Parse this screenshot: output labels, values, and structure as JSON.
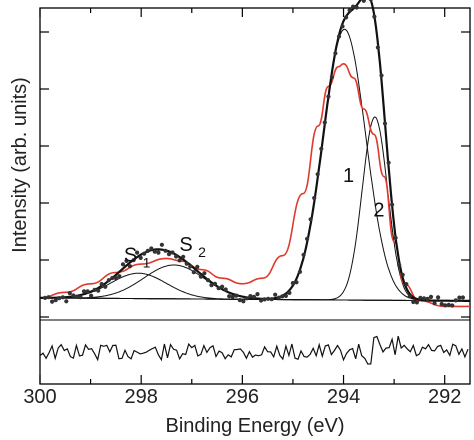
{
  "chart_data": {
    "type": "line",
    "xlabel": "Binding Energy (eV)",
    "ylabel": "Intensity (arb. units)",
    "x_reversed": true,
    "xlim": [
      300,
      291.5
    ],
    "ylim": [
      0,
      1.0
    ],
    "y_ticks_labeled": false,
    "x_ticks": [
      {
        "value": 300,
        "label": "300"
      },
      {
        "value": 298,
        "label": "298"
      },
      {
        "value": 296,
        "label": "296"
      },
      {
        "value": 294,
        "label": "294"
      },
      {
        "value": 292,
        "label": "292"
      }
    ],
    "components": [
      {
        "label": "S",
        "sub": "1",
        "center": 298.05,
        "width": 0.55,
        "height": 0.09
      },
      {
        "label": "S",
        "sub": "2",
        "center": 297.35,
        "width": 0.6,
        "height": 0.12
      },
      {
        "label": "1",
        "center": 293.98,
        "width": 0.42,
        "height": 0.96
      },
      {
        "label": "2",
        "center": 293.38,
        "width": 0.25,
        "height": 0.65
      }
    ],
    "comparison_curve": {
      "color": "#e03a2e",
      "points": [
        [
          300,
          0.05
        ],
        [
          299.5,
          0.07
        ],
        [
          299,
          0.1
        ],
        [
          298.5,
          0.14
        ],
        [
          298,
          0.17
        ],
        [
          297.5,
          0.19
        ],
        [
          297.2,
          0.18
        ],
        [
          296.8,
          0.15
        ],
        [
          296.4,
          0.12
        ],
        [
          296,
          0.1
        ],
        [
          295.6,
          0.12
        ],
        [
          295.2,
          0.2
        ],
        [
          294.8,
          0.42
        ],
        [
          294.5,
          0.66
        ],
        [
          294.3,
          0.8
        ],
        [
          294.1,
          0.87
        ],
        [
          294,
          0.88
        ],
        [
          293.8,
          0.83
        ],
        [
          293.6,
          0.72
        ],
        [
          293.4,
          0.63
        ],
        [
          293.2,
          0.48
        ],
        [
          293,
          0.25
        ],
        [
          292.8,
          0.1
        ],
        [
          292.5,
          0.04
        ],
        [
          292,
          0.02
        ],
        [
          291.5,
          0.02
        ]
      ]
    },
    "residual_panel": true,
    "colors": {
      "fit": "#111111",
      "data": "#333333",
      "comparison": "#e03a2e",
      "axis": "#000000"
    }
  }
}
